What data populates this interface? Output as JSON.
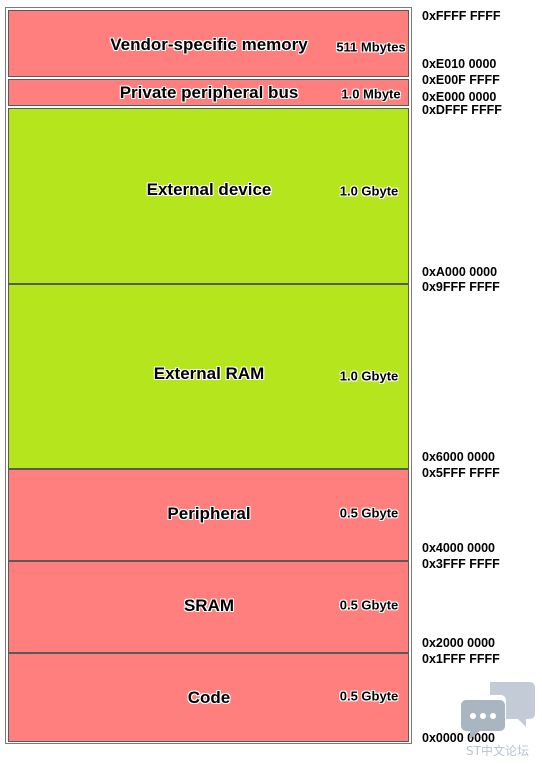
{
  "regions": [
    {
      "name": "Vendor-specific memory",
      "size": "511 Mbytes",
      "color": "#ff7f7f"
    },
    {
      "name": "Private peripheral bus",
      "size": "1.0 Mbyte",
      "color": "#ff7f7f"
    },
    {
      "name": "External device",
      "size": "1.0 Gbyte",
      "color": "#b5e61d"
    },
    {
      "name": "External RAM",
      "size": "1.0 Gbyte",
      "color": "#b5e61d"
    },
    {
      "name": "Peripheral",
      "size": "0.5 Gbyte",
      "color": "#ff7f7f"
    },
    {
      "name": "SRAM",
      "size": "0.5 Gbyte",
      "color": "#ff7f7f"
    },
    {
      "name": "Code",
      "size": "0.5 Gbyte",
      "color": "#ff7f7f"
    }
  ],
  "addresses": [
    "0xFFFF FFFF",
    "0xE010 0000",
    "0xE00F FFFF",
    "0xE000 0000",
    "0xDFFF FFFF",
    "0xA000 0000",
    "0x9FFF FFFF",
    "0x6000 0000",
    "0x5FFF FFFF",
    "0x4000 0000",
    "0x3FFF FFFF",
    "0x2000 0000",
    "0x1FFF FFFF",
    "0x0000 0000"
  ],
  "watermark": {
    "text": "ST中文论坛",
    "icon": "chat-bubble-icon"
  }
}
